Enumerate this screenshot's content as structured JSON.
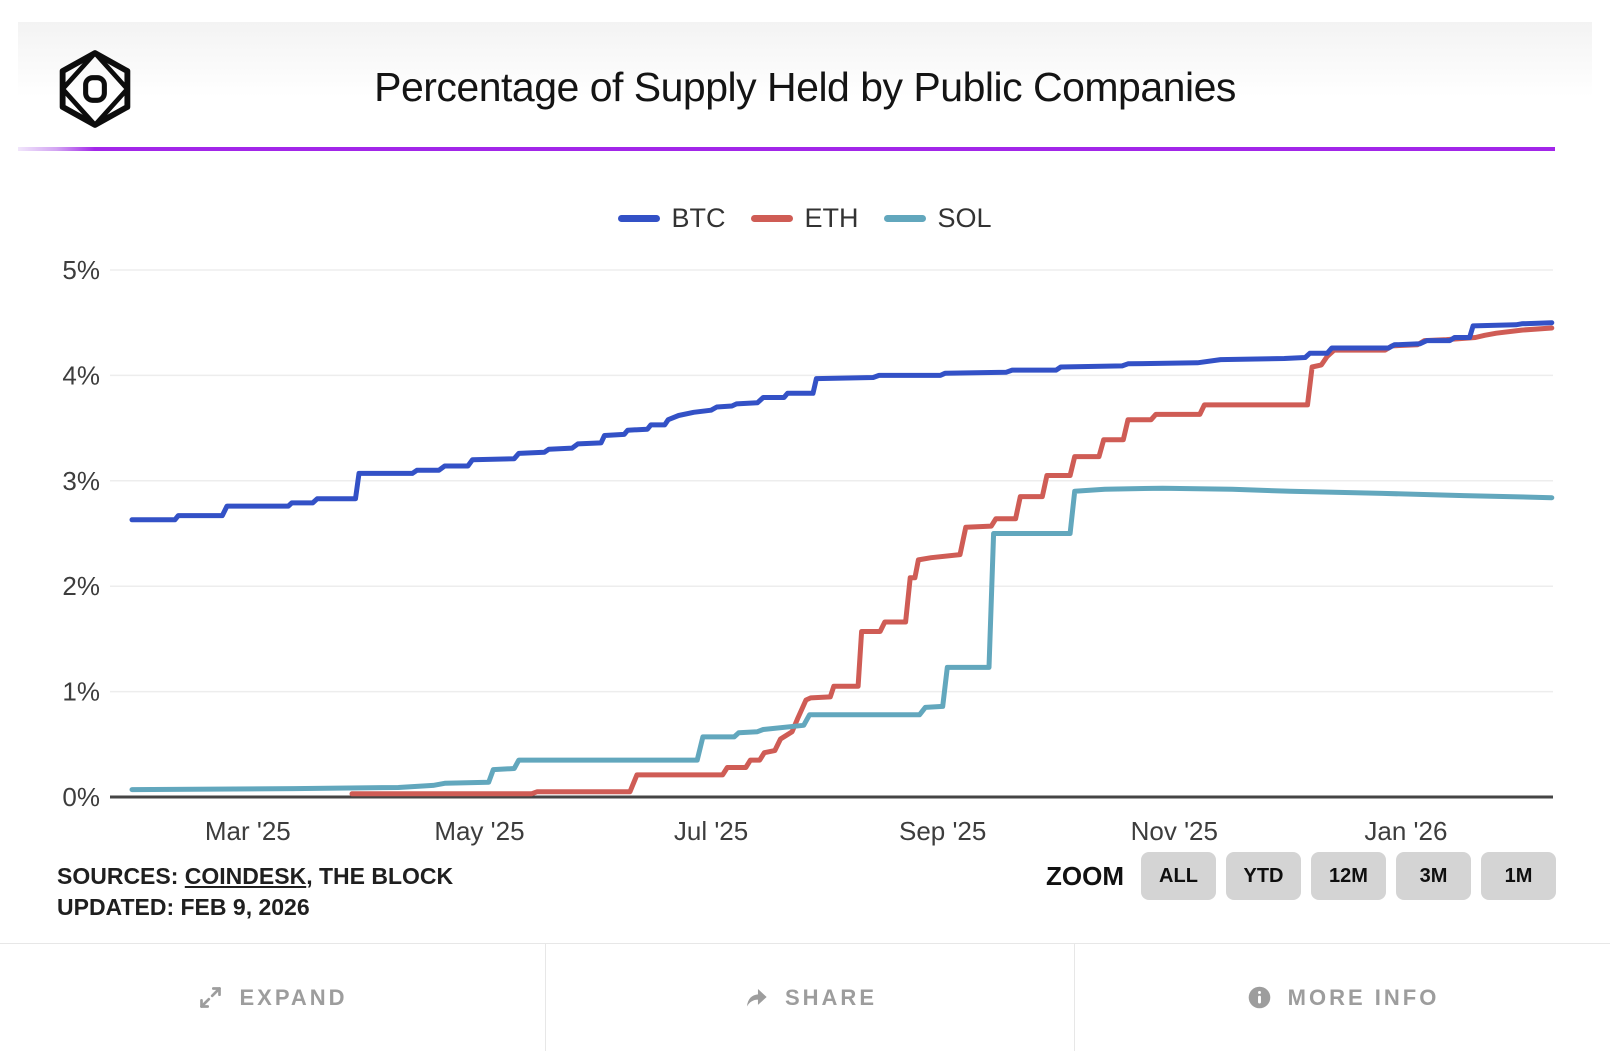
{
  "header": {
    "title": "Percentage of Supply Held by Public Companies",
    "logo": "the-block-logo"
  },
  "legend": [
    {
      "label": "BTC",
      "color": "#3351c6"
    },
    {
      "label": "ETH",
      "color": "#cf5c55"
    },
    {
      "label": "SOL",
      "color": "#62a7bd"
    }
  ],
  "chart_data": {
    "type": "line",
    "title": "Percentage of Supply Held by Public Companies",
    "x_unit": "months since Feb 2025",
    "x_range": [
      0,
      12.27
    ],
    "y_range": [
      0,
      5
    ],
    "grid": "horizontal",
    "legend_position": "top",
    "y_ticks": [
      {
        "value": 0,
        "label": "0%"
      },
      {
        "value": 1,
        "label": "1%"
      },
      {
        "value": 2,
        "label": "2%"
      },
      {
        "value": 3,
        "label": "3%"
      },
      {
        "value": 4,
        "label": "4%"
      },
      {
        "value": 5,
        "label": "5%"
      }
    ],
    "x_ticks": [
      {
        "value": 1,
        "label": "Mar '25"
      },
      {
        "value": 3,
        "label": "May '25"
      },
      {
        "value": 5,
        "label": "Jul '25"
      },
      {
        "value": 7,
        "label": "Sep '25"
      },
      {
        "value": 9,
        "label": "Nov '25"
      },
      {
        "value": 11,
        "label": "Jan '26"
      }
    ],
    "series": [
      {
        "name": "BTC",
        "color": "#3351c6",
        "points": [
          [
            0,
            2.63
          ],
          [
            0.37,
            2.63
          ],
          [
            0.4,
            2.67
          ],
          [
            0.78,
            2.67
          ],
          [
            0.82,
            2.76
          ],
          [
            1.35,
            2.76
          ],
          [
            1.38,
            2.79
          ],
          [
            1.56,
            2.79
          ],
          [
            1.6,
            2.83
          ],
          [
            1.93,
            2.83
          ],
          [
            1.96,
            3.07
          ],
          [
            2.42,
            3.07
          ],
          [
            2.46,
            3.1
          ],
          [
            2.65,
            3.1
          ],
          [
            2.7,
            3.14
          ],
          [
            2.9,
            3.14
          ],
          [
            2.94,
            3.2
          ],
          [
            3.3,
            3.21
          ],
          [
            3.34,
            3.26
          ],
          [
            3.56,
            3.27
          ],
          [
            3.6,
            3.3
          ],
          [
            3.8,
            3.31
          ],
          [
            3.85,
            3.35
          ],
          [
            4.05,
            3.36
          ],
          [
            4.08,
            3.43
          ],
          [
            4.25,
            3.44
          ],
          [
            4.28,
            3.48
          ],
          [
            4.45,
            3.49
          ],
          [
            4.48,
            3.53
          ],
          [
            4.6,
            3.53
          ],
          [
            4.63,
            3.58
          ],
          [
            4.72,
            3.62
          ],
          [
            4.85,
            3.65
          ],
          [
            5.0,
            3.67
          ],
          [
            5.05,
            3.7
          ],
          [
            5.18,
            3.71
          ],
          [
            5.22,
            3.73
          ],
          [
            5.4,
            3.74
          ],
          [
            5.45,
            3.79
          ],
          [
            5.63,
            3.79
          ],
          [
            5.66,
            3.83
          ],
          [
            5.88,
            3.83
          ],
          [
            5.91,
            3.97
          ],
          [
            6.4,
            3.98
          ],
          [
            6.45,
            4.0
          ],
          [
            6.98,
            4.0
          ],
          [
            7.02,
            4.02
          ],
          [
            7.55,
            4.03
          ],
          [
            7.6,
            4.05
          ],
          [
            7.98,
            4.05
          ],
          [
            8.02,
            4.08
          ],
          [
            8.55,
            4.09
          ],
          [
            8.6,
            4.11
          ],
          [
            9.2,
            4.12
          ],
          [
            9.4,
            4.15
          ],
          [
            9.95,
            4.16
          ],
          [
            10.13,
            4.17
          ],
          [
            10.17,
            4.21
          ],
          [
            10.32,
            4.21
          ],
          [
            10.36,
            4.26
          ],
          [
            10.85,
            4.26
          ],
          [
            10.9,
            4.29
          ],
          [
            11.12,
            4.3
          ],
          [
            11.18,
            4.33
          ],
          [
            11.38,
            4.33
          ],
          [
            11.42,
            4.36
          ],
          [
            11.55,
            4.36
          ],
          [
            11.58,
            4.47
          ],
          [
            11.95,
            4.48
          ],
          [
            12.0,
            4.49
          ],
          [
            12.26,
            4.5
          ]
        ]
      },
      {
        "name": "ETH",
        "color": "#cf5c55",
        "points": [
          [
            1.9,
            0.03
          ],
          [
            3.45,
            0.03
          ],
          [
            3.5,
            0.05
          ],
          [
            4.3,
            0.05
          ],
          [
            4.36,
            0.21
          ],
          [
            5.1,
            0.21
          ],
          [
            5.14,
            0.28
          ],
          [
            5.3,
            0.28
          ],
          [
            5.34,
            0.35
          ],
          [
            5.42,
            0.35
          ],
          [
            5.46,
            0.42
          ],
          [
            5.55,
            0.44
          ],
          [
            5.6,
            0.55
          ],
          [
            5.7,
            0.62
          ],
          [
            5.75,
            0.75
          ],
          [
            5.82,
            0.92
          ],
          [
            5.86,
            0.94
          ],
          [
            6.03,
            0.95
          ],
          [
            6.06,
            1.05
          ],
          [
            6.27,
            1.05
          ],
          [
            6.3,
            1.57
          ],
          [
            6.46,
            1.57
          ],
          [
            6.5,
            1.66
          ],
          [
            6.68,
            1.66
          ],
          [
            6.72,
            2.08
          ],
          [
            6.76,
            2.08
          ],
          [
            6.79,
            2.25
          ],
          [
            6.9,
            2.27
          ],
          [
            7.15,
            2.3
          ],
          [
            7.2,
            2.56
          ],
          [
            7.42,
            2.57
          ],
          [
            7.46,
            2.64
          ],
          [
            7.63,
            2.64
          ],
          [
            7.67,
            2.85
          ],
          [
            7.86,
            2.85
          ],
          [
            7.9,
            3.05
          ],
          [
            8.1,
            3.05
          ],
          [
            8.14,
            3.23
          ],
          [
            8.35,
            3.23
          ],
          [
            8.39,
            3.39
          ],
          [
            8.56,
            3.39
          ],
          [
            8.6,
            3.58
          ],
          [
            8.8,
            3.58
          ],
          [
            8.84,
            3.63
          ],
          [
            9.22,
            3.63
          ],
          [
            9.26,
            3.72
          ],
          [
            10.15,
            3.72
          ],
          [
            10.19,
            4.08
          ],
          [
            10.27,
            4.1
          ],
          [
            10.32,
            4.18
          ],
          [
            10.38,
            4.24
          ],
          [
            10.82,
            4.24
          ],
          [
            10.88,
            4.28
          ],
          [
            11.1,
            4.29
          ],
          [
            11.16,
            4.33
          ],
          [
            11.35,
            4.34
          ],
          [
            11.6,
            4.36
          ],
          [
            11.68,
            4.38
          ],
          [
            11.78,
            4.4
          ],
          [
            12.0,
            4.43
          ],
          [
            12.26,
            4.45
          ]
        ]
      },
      {
        "name": "SOL",
        "color": "#62a7bd",
        "points": [
          [
            0,
            0.07
          ],
          [
            1.4,
            0.08
          ],
          [
            2.3,
            0.09
          ],
          [
            2.6,
            0.11
          ],
          [
            2.7,
            0.13
          ],
          [
            3.08,
            0.14
          ],
          [
            3.12,
            0.26
          ],
          [
            3.3,
            0.27
          ],
          [
            3.34,
            0.35
          ],
          [
            4.88,
            0.35
          ],
          [
            4.93,
            0.57
          ],
          [
            5.2,
            0.57
          ],
          [
            5.24,
            0.61
          ],
          [
            5.4,
            0.62
          ],
          [
            5.45,
            0.64
          ],
          [
            5.8,
            0.68
          ],
          [
            5.85,
            0.78
          ],
          [
            6.8,
            0.78
          ],
          [
            6.85,
            0.85
          ],
          [
            7.0,
            0.86
          ],
          [
            7.04,
            1.23
          ],
          [
            7.4,
            1.23
          ],
          [
            7.44,
            2.5
          ],
          [
            8.1,
            2.5
          ],
          [
            8.14,
            2.9
          ],
          [
            8.4,
            2.92
          ],
          [
            8.9,
            2.93
          ],
          [
            9.5,
            2.92
          ],
          [
            10.0,
            2.9
          ],
          [
            10.8,
            2.88
          ],
          [
            11.5,
            2.86
          ],
          [
            12.26,
            2.84
          ]
        ]
      }
    ]
  },
  "footer": {
    "sources_prefix": "SOURCES: ",
    "source_link": "COINDESK",
    "sources_suffix": ", THE BLOCK",
    "updated": "UPDATED: FEB 9, 2026",
    "zoom_label": "ZOOM",
    "zoom_buttons": [
      "ALL",
      "YTD",
      "12M",
      "3M",
      "1M"
    ]
  },
  "actions": [
    {
      "label": "EXPAND",
      "icon": "expand-icon"
    },
    {
      "label": "SHARE",
      "icon": "share-icon"
    },
    {
      "label": "MORE INFO",
      "icon": "info-icon"
    }
  ],
  "colors": {
    "accent_purple": "#a226e9",
    "btc_line": "#3351c6",
    "eth_line": "#cf5c55",
    "sol_line": "#62a7bd",
    "gridline": "#ededed",
    "axis_line": "#454545",
    "button_bg": "#d4d4d4",
    "muted_text": "#9d9d9d"
  }
}
